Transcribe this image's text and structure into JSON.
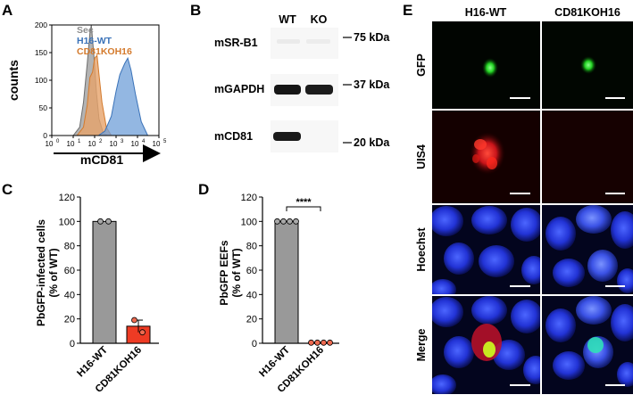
{
  "panels": {
    "A": {
      "letter": "A",
      "legend": [
        {
          "label": "Sec",
          "color": "#8c8c8c"
        },
        {
          "label": "H16-WT",
          "color": "#3a72b8"
        },
        {
          "label": "CD81KOH16",
          "color": "#d47a2c"
        }
      ],
      "ylabel": "counts",
      "xlabel": "mCD81",
      "yticks": [
        "0",
        "50",
        "100",
        "150",
        "200"
      ],
      "xticks_base": [
        "10",
        "10",
        "10",
        "10",
        "10",
        "10"
      ],
      "xticks_exp": [
        "0",
        "1",
        "2",
        "3",
        "4",
        "5"
      ]
    },
    "B": {
      "letter": "B",
      "lanes": [
        "WT",
        "KO"
      ],
      "blots": [
        "mSR-B1",
        "mGAPDH",
        "mCD81"
      ],
      "markers": [
        "75 kDa",
        "37 kDa",
        "20 kDa"
      ]
    },
    "C": {
      "letter": "C",
      "ylabel_line1": "PbGFP-infected cells",
      "ylabel_line2": "(% of WT)",
      "yticks": [
        "0",
        "20",
        "40",
        "60",
        "80",
        "100",
        "120"
      ],
      "categories": [
        "H16-WT",
        "CD81KOH16"
      ],
      "colors": [
        "#999999",
        "#ee3b24"
      ]
    },
    "D": {
      "letter": "D",
      "ylabel_line1": "PbGFP EEFs",
      "ylabel_line2": "(% of WT)",
      "yticks": [
        "0",
        "20",
        "40",
        "60",
        "80",
        "100",
        "120"
      ],
      "categories": [
        "H16-WT",
        "CD81KOH16"
      ],
      "significance": "****",
      "colors": [
        "#999999",
        "#ee3b24"
      ]
    },
    "E": {
      "letter": "E",
      "columns": [
        "H16-WT",
        "CD81KOH16"
      ],
      "rows": [
        "GFP",
        "UIS4",
        "Hoechst",
        "Merge"
      ]
    }
  },
  "chart_data": [
    {
      "type": "area",
      "panel": "A",
      "xlabel": "mCD81",
      "ylabel": "counts",
      "xscale": "log",
      "xlim": [
        1,
        100000
      ],
      "ylim": [
        0,
        200
      ],
      "series": [
        {
          "name": "Sec",
          "x": [
            10,
            20,
            30,
            45,
            60,
            70,
            90,
            120,
            160,
            250,
            400
          ],
          "y": [
            0,
            15,
            60,
            130,
            185,
            200,
            150,
            80,
            30,
            5,
            0
          ]
        },
        {
          "name": "CD81KOH16",
          "x": [
            15,
            30,
            45,
            60,
            80,
            100,
            130,
            160,
            220,
            350,
            600
          ],
          "y": [
            0,
            15,
            55,
            105,
            115,
            140,
            145,
            110,
            60,
            15,
            0
          ]
        },
        {
          "name": "H16-WT",
          "x": [
            150,
            300,
            600,
            1000,
            1500,
            2500,
            3500,
            5000,
            8000,
            15000,
            30000
          ],
          "y": [
            0,
            8,
            35,
            80,
            110,
            130,
            140,
            118,
            75,
            25,
            0
          ]
        }
      ]
    },
    {
      "type": "bar",
      "panel": "C",
      "categories": [
        "H16-WT",
        "CD81KOH16"
      ],
      "values": [
        100,
        14
      ],
      "error": [
        0,
        5
      ],
      "points": [
        [
          100,
          100
        ],
        [
          19,
          9
        ]
      ],
      "ylabel": "PbGFP-infected cells (% of WT)",
      "ylim": [
        0,
        120
      ]
    },
    {
      "type": "bar",
      "panel": "D",
      "categories": [
        "H16-WT",
        "CD81KOH16"
      ],
      "values": [
        100,
        0.5
      ],
      "error": [
        0,
        0
      ],
      "points": [
        [
          100,
          100,
          100,
          100
        ],
        [
          0.5,
          0.5,
          0.5,
          0.5
        ]
      ],
      "ylabel": "PbGFP EEFs (% of WT)",
      "ylim": [
        0,
        120
      ]
    }
  ]
}
